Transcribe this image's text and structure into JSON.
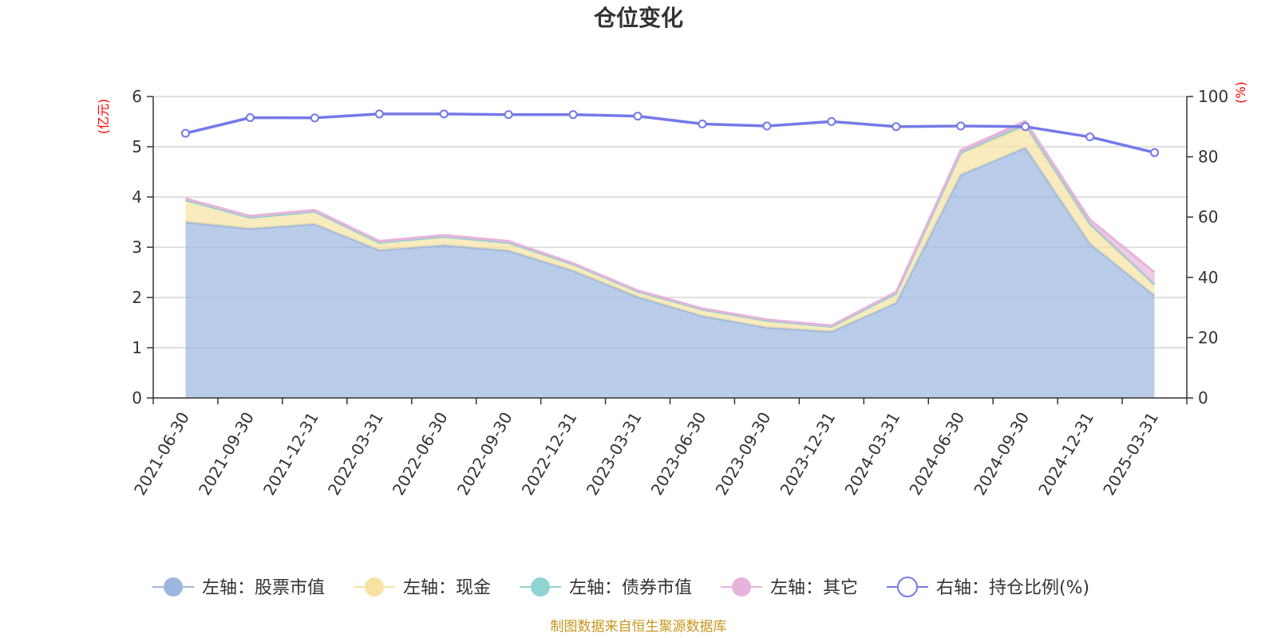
{
  "chart_data": {
    "type": "area",
    "title": "仓位变化",
    "left_axis_unit": "(亿元)",
    "right_axis_unit": "(%)",
    "categories": [
      "2021-06-30",
      "2021-09-30",
      "2021-12-31",
      "2022-03-31",
      "2022-06-30",
      "2022-09-30",
      "2022-12-31",
      "2023-03-31",
      "2023-06-30",
      "2023-09-30",
      "2023-12-31",
      "2024-03-31",
      "2024-06-30",
      "2024-09-30",
      "2024-12-31",
      "2025-03-31"
    ],
    "ylim_left": [
      0,
      6
    ],
    "yticks_left": [
      0,
      1,
      2,
      3,
      4,
      5,
      6
    ],
    "ylim_right": [
      0,
      100
    ],
    "yticks_right": [
      0,
      20,
      40,
      60,
      80,
      100
    ],
    "grid": true,
    "legend_position": "bottom",
    "series": [
      {
        "name": "左轴：股票市值",
        "axis": "left",
        "kind": "stacked-area",
        "color": "#9bb7e0",
        "values": [
          3.5,
          3.37,
          3.46,
          2.94,
          3.04,
          2.93,
          2.53,
          2.01,
          1.63,
          1.4,
          1.32,
          1.89,
          4.44,
          4.98,
          3.07,
          2.04
        ]
      },
      {
        "name": "左轴：现金",
        "axis": "left",
        "kind": "stacked-area",
        "color": "#f6e3a1",
        "values": [
          0.44,
          0.22,
          0.25,
          0.15,
          0.17,
          0.16,
          0.13,
          0.11,
          0.13,
          0.14,
          0.1,
          0.19,
          0.44,
          0.42,
          0.37,
          0.22
        ]
      },
      {
        "name": "左轴：债券市值",
        "axis": "left",
        "kind": "stacked-area",
        "color": "#8fd3d3",
        "values": [
          0,
          0,
          0,
          0,
          0,
          0,
          0,
          0,
          0,
          0,
          0,
          0,
          0,
          0.05,
          0.03,
          0
        ]
      },
      {
        "name": "左轴：其它",
        "axis": "left",
        "kind": "stacked-area",
        "color": "#e8b3da",
        "values": [
          0.03,
          0.03,
          0.03,
          0.03,
          0.03,
          0.03,
          0.02,
          0.02,
          0.02,
          0.02,
          0.02,
          0.03,
          0.05,
          0.06,
          0.08,
          0.24
        ]
      },
      {
        "name": "右轴：持仓比例(%)",
        "axis": "right",
        "kind": "line",
        "color": "#7479e8",
        "values": [
          87.8,
          93.0,
          92.9,
          94.2,
          94.2,
          94.0,
          94.0,
          93.5,
          90.9,
          90.2,
          91.7,
          90.0,
          90.2,
          90.0,
          86.6,
          81.4
        ]
      }
    ]
  },
  "source_note": "制图数据来自恒生聚源数据库"
}
